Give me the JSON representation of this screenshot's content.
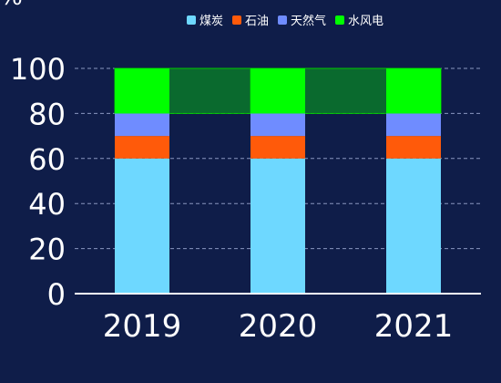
{
  "chart_data": {
    "type": "bar",
    "stacked": true,
    "unit": "%",
    "categories": [
      "2019",
      "2020",
      "2021"
    ],
    "series": [
      {
        "name": "煤炭",
        "values": [
          60,
          60,
          60
        ],
        "color": "#6ed8ff"
      },
      {
        "name": "石油",
        "values": [
          10,
          10,
          10
        ],
        "color": "#ff5a0a"
      },
      {
        "name": "天然气",
        "values": [
          10,
          10,
          10
        ],
        "color": "#6f8cff"
      },
      {
        "name": "水风电",
        "values": [
          20,
          20,
          20
        ],
        "color": "#00ff00"
      }
    ],
    "band": {
      "from": 80,
      "to": 100,
      "color": "#0a6a2e"
    },
    "ylim": [
      0,
      100
    ],
    "yticks": [
      "0",
      "20",
      "40",
      "60",
      "80",
      "100"
    ],
    "grid": true,
    "legend_position": "top"
  }
}
